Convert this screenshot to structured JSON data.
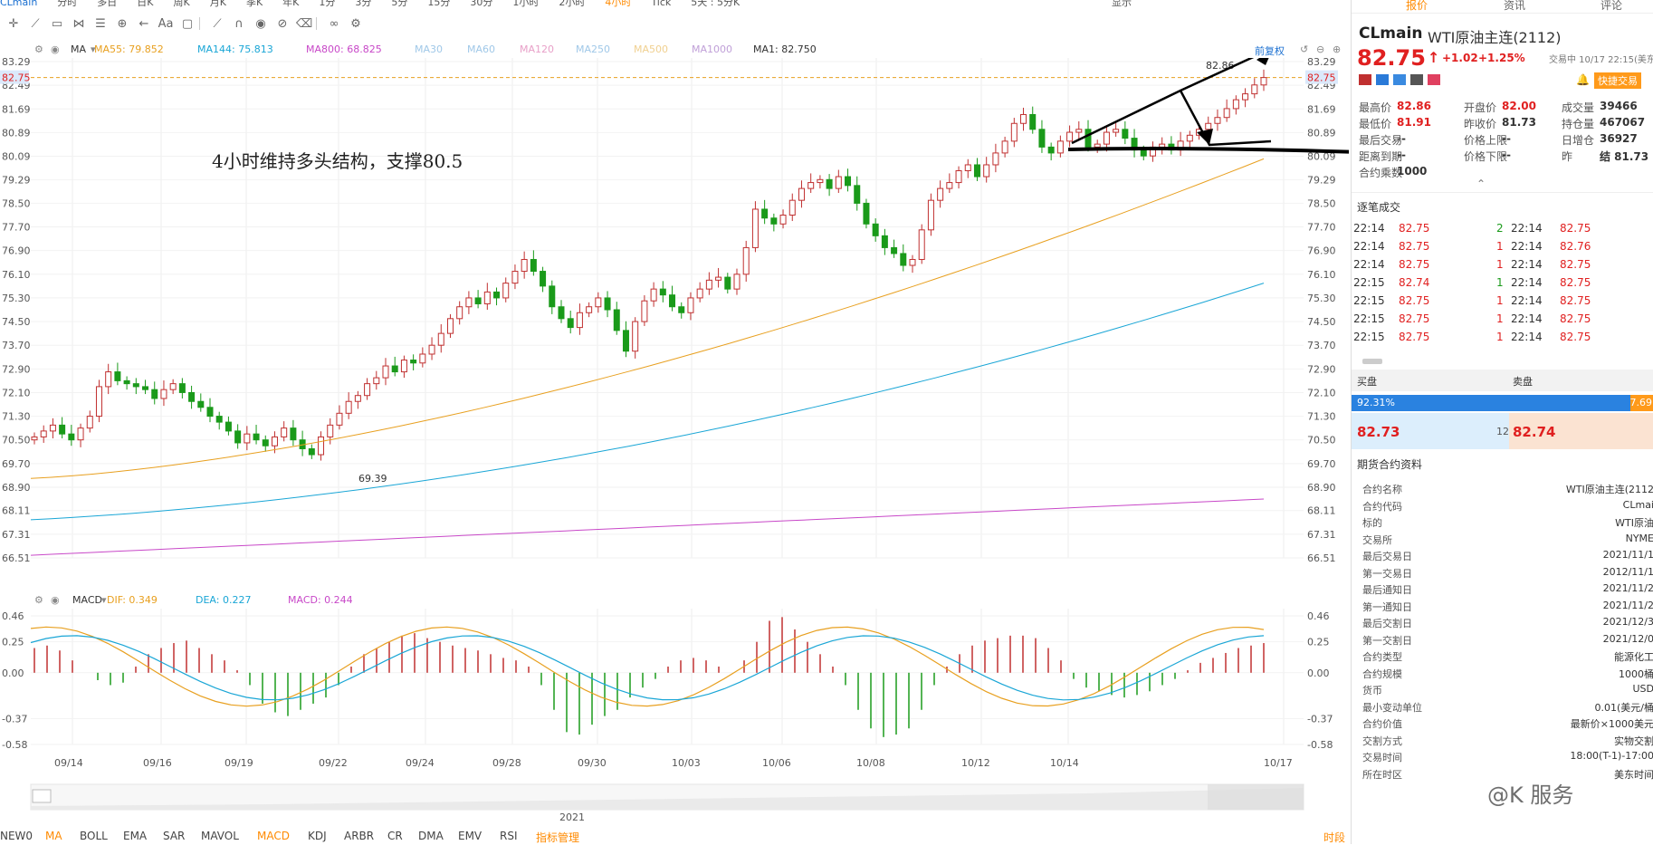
{
  "top_tabs": {
    "symbol": "CLmain",
    "periods": [
      "分时",
      "多日",
      "日K",
      "周K",
      "月K",
      "季K",
      "年K",
      "1分",
      "3分",
      "5分",
      "15分",
      "30分",
      "1小时",
      "2小时",
      "4小时",
      "Tick",
      "5天 : 5分K"
    ],
    "active": "4小时",
    "right": [
      "显示"
    ]
  },
  "ma_legend": {
    "ind": "MA",
    "items": [
      {
        "label": "MA55: 79.852",
        "color": "#e8a020"
      },
      {
        "label": "MA144: 75.813",
        "color": "#1aa6d6"
      },
      {
        "label": "MA800: 68.825",
        "color": "#c848c8"
      },
      {
        "label": "MA30",
        "color": "#a0c8e8"
      },
      {
        "label": "MA60",
        "color": "#a0c8e8"
      },
      {
        "label": "MA120",
        "color": "#e8a0c8"
      },
      {
        "label": "MA250",
        "color": "#a0c8e8"
      },
      {
        "label": "MA500",
        "color": "#f0d090"
      },
      {
        "label": "MA1000",
        "color": "#c0a0d8"
      },
      {
        "label": "MA1: 82.750",
        "color": "#333333"
      }
    ],
    "adj": "前复权"
  },
  "main_chart": {
    "y_ticks": [
      "83.29",
      "82.49",
      "81.69",
      "80.89",
      "80.09",
      "79.29",
      "78.50",
      "77.70",
      "76.90",
      "76.10",
      "75.30",
      "74.50",
      "73.70",
      "72.90",
      "72.10",
      "71.30",
      "70.50",
      "69.70",
      "68.90",
      "68.11",
      "67.31",
      "66.51"
    ],
    "current_price": "82.75",
    "high_label": "82.86",
    "low_label": "69.39",
    "annotation": "4小时维持多头结构，支撑80.5"
  },
  "macd_legend": {
    "ind": "MACD",
    "items": [
      {
        "label": "DIF: 0.349",
        "color": "#e8a020"
      },
      {
        "label": "DEA: 0.227",
        "color": "#1aa6d6"
      },
      {
        "label": "MACD: 0.244",
        "color": "#c848c8"
      }
    ]
  },
  "macd_chart": {
    "y_ticks": [
      "0.46",
      "0.25",
      "0.00",
      "-0.37",
      "-0.58"
    ]
  },
  "x_axis": [
    "09/14",
    "09/16",
    "09/19",
    "09/22",
    "09/24",
    "09/28",
    "09/30",
    "10/03",
    "10/06",
    "10/08",
    "10/12",
    "10/14",
    "10/17"
  ],
  "navigator": {
    "year": "2021"
  },
  "indicators": {
    "items": [
      "NEW0",
      "MA",
      "BOLL",
      "EMA",
      "SAR",
      "MAVOL",
      "MACD",
      "KDJ",
      "ARBR",
      "CR",
      "DMA",
      "EMV",
      "RSI",
      "指标管理"
    ],
    "active": [
      "MA",
      "MACD",
      "指标管理"
    ],
    "right": "时段"
  },
  "right_panel": {
    "tabs": [
      "报价",
      "资讯",
      "评论"
    ],
    "symbol": "CLmain",
    "name": "WTI原油主连(2112)",
    "price": "82.75",
    "arrow": "↑",
    "change": "+1.02",
    "change_pct": "+1.25%",
    "trade_time": "交易中 10/17 22:15(美东",
    "quick_trade": "快捷交易",
    "stats": [
      [
        {
          "k": "最高价",
          "v": "82.86",
          "c": "red"
        },
        {
          "k": "开盘价",
          "v": "82.00",
          "c": "red"
        },
        {
          "k": "成交量",
          "v": "39466",
          "c": "dark"
        }
      ],
      [
        {
          "k": "最低价",
          "v": "81.91",
          "c": "red"
        },
        {
          "k": "昨收价",
          "v": "81.73",
          "c": "dark"
        },
        {
          "k": "持仓量",
          "v": "467067",
          "c": "dark"
        }
      ],
      [
        {
          "k": "最后交易",
          "v": "--",
          "c": "dark"
        },
        {
          "k": "价格上限",
          "v": "--",
          "c": "dark"
        },
        {
          "k": "日增仓",
          "v": "36927",
          "c": "dark"
        }
      ],
      [
        {
          "k": "距离到期",
          "v": "--",
          "c": "dark"
        },
        {
          "k": "价格下限",
          "v": "--",
          "c": "dark"
        },
        {
          "k": "昨",
          "v": "结 81.73",
          "c": "dark"
        }
      ],
      [
        {
          "k": "合约乘数",
          "v": "1000",
          "c": "dark"
        }
      ]
    ],
    "ticks_title": "逐笔成交",
    "ticks": [
      {
        "t1": "22:14",
        "p1": "82.75",
        "v1": "2",
        "c1": "green",
        "t2": "22:14",
        "p2": "82.75"
      },
      {
        "t1": "22:14",
        "p1": "82.75",
        "v1": "1",
        "c1": "red",
        "t2": "22:14",
        "p2": "82.76"
      },
      {
        "t1": "22:14",
        "p1": "82.75",
        "v1": "1",
        "c1": "red",
        "t2": "22:14",
        "p2": "82.75"
      },
      {
        "t1": "22:15",
        "p1": "82.74",
        "v1": "1",
        "c1": "green",
        "t2": "22:14",
        "p2": "82.75"
      },
      {
        "t1": "22:15",
        "p1": "82.75",
        "v1": "1",
        "c1": "red",
        "t2": "22:14",
        "p2": "82.75"
      },
      {
        "t1": "22:15",
        "p1": "82.75",
        "v1": "1",
        "c1": "red",
        "t2": "22:14",
        "p2": "82.75"
      },
      {
        "t1": "22:15",
        "p1": "82.75",
        "v1": "1",
        "c1": "red",
        "t2": "22:14",
        "p2": "82.75"
      }
    ],
    "book": {
      "buy_label": "买盘",
      "sell_label": "卖盘",
      "buy_pct": "92.31%",
      "sell_pct": "7.69",
      "buy_ratio": 0.9231,
      "bid": "82.73",
      "bid_size": "12",
      "ask": "82.74"
    },
    "info_title": "期货合约资料",
    "info": [
      {
        "k": "合约名称",
        "v": "WTI原油主连(2112"
      },
      {
        "k": "合约代码",
        "v": "CLmai"
      },
      {
        "k": "标的",
        "v": "WTI原油"
      },
      {
        "k": "交易所",
        "v": "NYME"
      },
      {
        "k": "最后交易日",
        "v": "2021/11/1"
      },
      {
        "k": "第一交易日",
        "v": "2012/11/1"
      },
      {
        "k": "最后通知日",
        "v": "2021/11/2"
      },
      {
        "k": "第一通知日",
        "v": "2021/11/2"
      },
      {
        "k": "最后交割日",
        "v": "2021/12/3"
      },
      {
        "k": "第一交割日",
        "v": "2021/12/0"
      },
      {
        "k": "合约类型",
        "v": "能源化工"
      },
      {
        "k": "合约规模",
        "v": "1000桶"
      },
      {
        "k": "货币",
        "v": "USD"
      },
      {
        "k": "最小变动单位",
        "v": "0.01(美元/桶"
      },
      {
        "k": "合约价值",
        "v": "最新价×1000美元"
      },
      {
        "k": "交割方式",
        "v": "实物交割"
      },
      {
        "k": "交易时间",
        "v": "18:00(T-1)-17:00"
      },
      {
        "k": "所在时区",
        "v": "美东时间"
      }
    ],
    "watermark": "@K 服务"
  }
}
